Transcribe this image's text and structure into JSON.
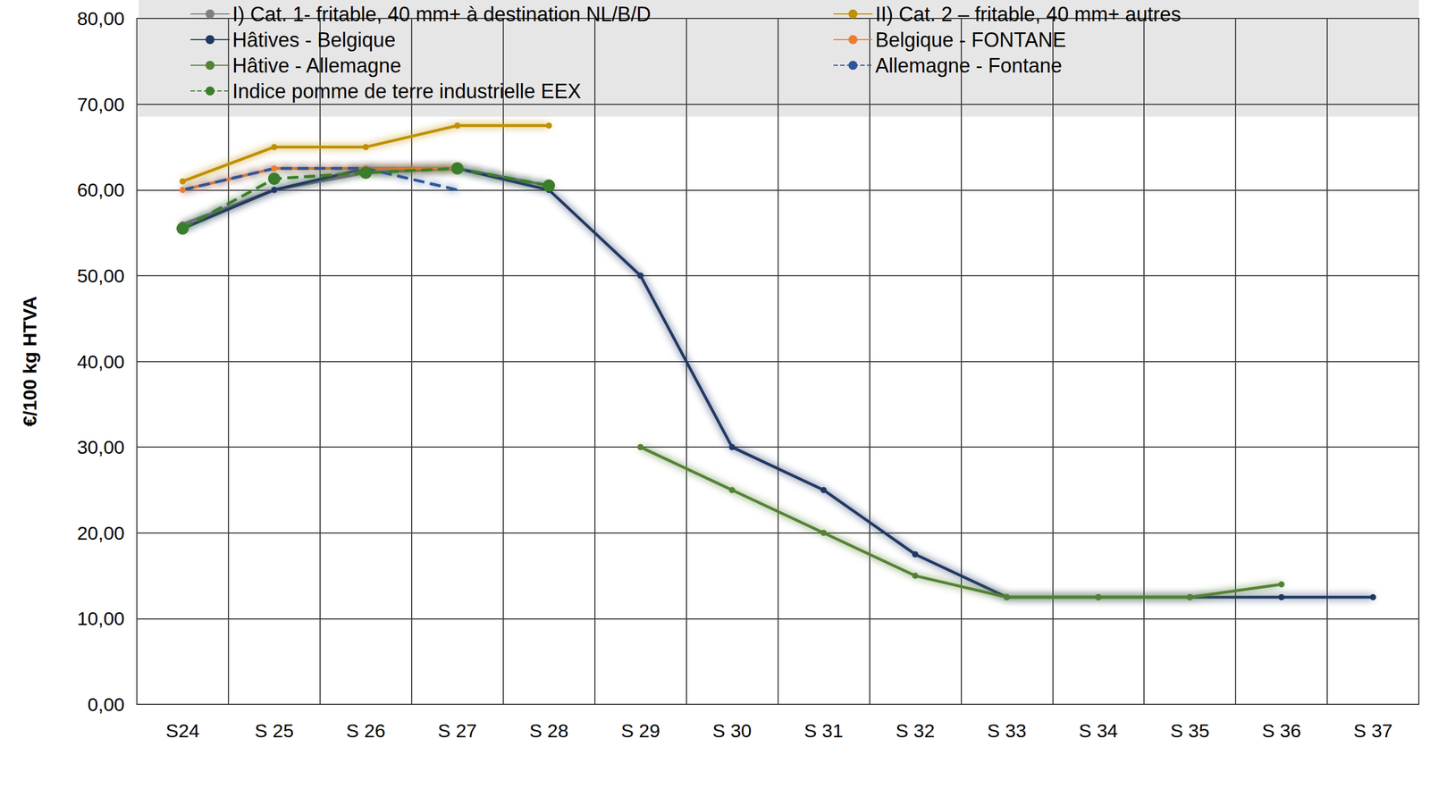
{
  "chart_data": {
    "type": "line",
    "y_label": "€/100 kg HTVA",
    "categories": [
      "S24",
      "S 25",
      "S 26",
      "S 27",
      "S 28",
      "S 29",
      "S 30",
      "S 31",
      "S 32",
      "S 33",
      "S 34",
      "S 35",
      "S 36",
      "S 37"
    ],
    "ylim": [
      0,
      80
    ],
    "yticks": [
      {
        "value": 0,
        "label": "0,00"
      },
      {
        "value": 10,
        "label": "10,00"
      },
      {
        "value": 20,
        "label": "20,00"
      },
      {
        "value": 30,
        "label": "30,00"
      },
      {
        "value": 40,
        "label": "40,00"
      },
      {
        "value": 50,
        "label": "50,00"
      },
      {
        "value": 60,
        "label": "60,00"
      },
      {
        "value": 70,
        "label": "70,00"
      },
      {
        "value": 80,
        "label": "80,00"
      }
    ],
    "grid": true,
    "legend": "top",
    "series": [
      {
        "name": "I) Cat. 1- fritable, 40 mm+ à destination NL/B/D",
        "color": "#7f7f7f",
        "marker": "circle",
        "line_style": "solid",
        "values": [
          56,
          60,
          62,
          62.5,
          60.5,
          null,
          null,
          null,
          null,
          null,
          null,
          null,
          null,
          null
        ]
      },
      {
        "name": "II) Cat. 2 – fritable, 40 mm+ autres",
        "color": "#bf9000",
        "marker": "circle",
        "line_style": "solid",
        "values": [
          61,
          65,
          65,
          67.5,
          67.5,
          null,
          null,
          null,
          null,
          null,
          null,
          null,
          null,
          null
        ]
      },
      {
        "name": "Hâtives - Belgique",
        "color": "#203864",
        "marker": "circle",
        "line_style": "solid",
        "values": [
          55.5,
          60,
          62.5,
          62.5,
          60,
          50,
          30,
          25,
          17.5,
          12.5,
          12.5,
          12.5,
          12.5,
          12.5
        ]
      },
      {
        "name": "Belgique - FONTANE",
        "color": "#ed7d31",
        "marker": "circle",
        "line_style": "solid",
        "values": [
          60,
          62.5,
          62.5,
          62.5,
          null,
          null,
          null,
          null,
          null,
          null,
          null,
          null,
          null,
          null
        ]
      },
      {
        "name": "Hâtive - Allemagne",
        "color": "#548235",
        "marker": "circle",
        "line_style": "solid",
        "values": [
          null,
          null,
          null,
          null,
          null,
          30,
          25,
          20,
          15,
          12.5,
          12.5,
          12.5,
          14,
          null
        ]
      },
      {
        "name": "Allemagne - Fontane",
        "color": "#2f5597",
        "marker": "none",
        "line_style": "dashed",
        "values": [
          60,
          62.5,
          62.5,
          60,
          null,
          null,
          null,
          null,
          null,
          null,
          null,
          null,
          null,
          null
        ]
      },
      {
        "name": "Indice pomme de terre industrielle EEX",
        "color": "#3a7d2a",
        "marker": "big_circle",
        "line_style": "dashed",
        "values": [
          55.5,
          61.3,
          62,
          62.5,
          60.5,
          null,
          null,
          null,
          null,
          null,
          null,
          null,
          null,
          null
        ]
      }
    ]
  }
}
